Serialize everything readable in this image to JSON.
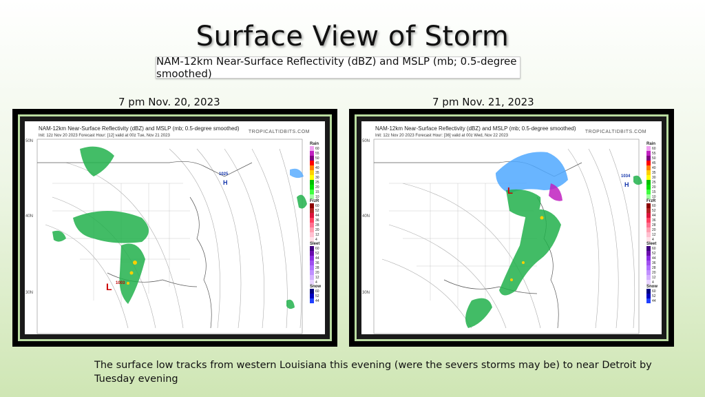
{
  "slide": {
    "title": "Surface View of Storm",
    "subtitle": "NAM-12km Near-Surface Reflectivity (dBZ) and MSLP (mb; 0.5-degree smoothed)",
    "caption": "The surface low tracks from western Louisiana this evening (were the severs storms may be) to near Detroit by Tuesday evening"
  },
  "panels": [
    {
      "date_label": "7 pm Nov. 20, 2023",
      "map_title": "NAM-12km Near-Surface Reflectivity (dBZ) and MSLP (mb; 0.5-degree smoothed)",
      "map_init": "Init: 12z Nov 20 2023   Forecast Hour: [12]   valid at 00z Tue, Nov 21 2023",
      "credit": "TROPICALTIDBITS.COM",
      "lat_labels": [
        "50N",
        "40N",
        "30N"
      ],
      "low_label": "1003",
      "high_label": "1025"
    },
    {
      "date_label": "7 pm Nov. 21, 2023",
      "map_title": "NAM-12km Near-Surface Reflectivity (dBZ) and MSLP (mb; 0.5-degree smoothed)",
      "map_init": "Init: 12z Nov 20 2023   Forecast Hour: [36]   valid at 00z Wed, Nov 22 2023",
      "credit": "TROPICALTIDBITS.COM",
      "lat_labels": [
        "50N",
        "40N",
        "30N"
      ],
      "low_label": "",
      "high_label": "1034"
    }
  ],
  "legend": {
    "rain": {
      "title": "Rain",
      "ticks": [
        "60",
        "55",
        "50",
        "45",
        "40",
        "35",
        "30",
        "25",
        "20",
        "15",
        "10"
      ]
    },
    "frzr": {
      "title": "FrzR",
      "ticks": [
        "60",
        "52",
        "44",
        "36",
        "28",
        "20",
        "12",
        "4"
      ]
    },
    "sleet": {
      "title": "Sleet",
      "ticks": [
        "60",
        "52",
        "44",
        "36",
        "28",
        "20",
        "12",
        "4"
      ]
    },
    "snow": {
      "title": "Snow",
      "ticks": [
        "60",
        "52",
        "44"
      ]
    },
    "colors": {
      "rain": [
        "#f0a0f0",
        "#c020c0",
        "#800080",
        "#ff0000",
        "#ff8000",
        "#ffd000",
        "#ffff00",
        "#00c000",
        "#00e000",
        "#40ff40",
        "#a0ffa0"
      ],
      "frzr": [
        "#8b0000",
        "#b22222",
        "#dc143c",
        "#ff4060",
        "#ff7090",
        "#ff9fb0",
        "#ffc0d0",
        "#ffe0e8"
      ],
      "sleet": [
        "#400080",
        "#6a0dad",
        "#8a2be2",
        "#a050f0",
        "#b070ff",
        "#c090ff",
        "#d4b0ff",
        "#e8d4ff"
      ],
      "snow": [
        "#000080",
        "#0000c0",
        "#2040ff"
      ]
    }
  },
  "colors": {
    "accent_frame": "#b9dca0",
    "rain_green": "#22b14c",
    "snow_blue": "#4fa8ff",
    "low_red": "#cc0000",
    "high_blue": "#1133aa"
  }
}
